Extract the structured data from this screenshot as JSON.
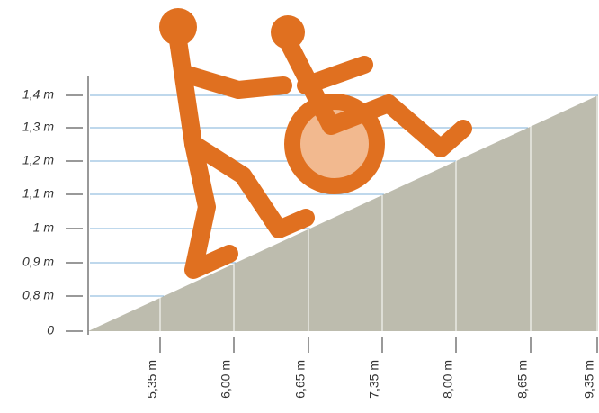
{
  "y_labels": [
    "0",
    "0,8 m",
    "0,9 m",
    "1 m",
    "1,1 m",
    "1,2 m",
    "1,3 m",
    "1,4 m"
  ],
  "x_labels": [
    "5,35 m",
    "6,00 m",
    "6,65 m",
    "7,35 m",
    "8,00 m",
    "8,65 m",
    "9,35 m"
  ]
}
